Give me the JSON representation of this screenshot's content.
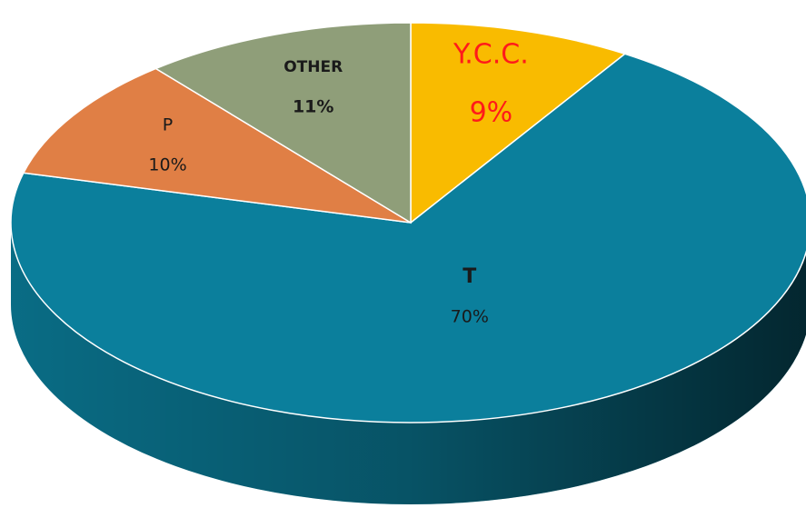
{
  "chart_data": {
    "type": "pie",
    "labels": [
      "Y.C.C.",
      "T",
      "P",
      "OTHER"
    ],
    "values": [
      9,
      70,
      10,
      11
    ],
    "value_labels": [
      "9%",
      "70%",
      "10%",
      "11%"
    ],
    "colors": [
      "#f9bb00",
      "#0b7f9c",
      "#e07f45",
      "#8f9e79"
    ],
    "label_colors": [
      "#ff1a1a",
      "#1a1a1a",
      "#1a1a1a",
      "#1a1a1a"
    ]
  }
}
